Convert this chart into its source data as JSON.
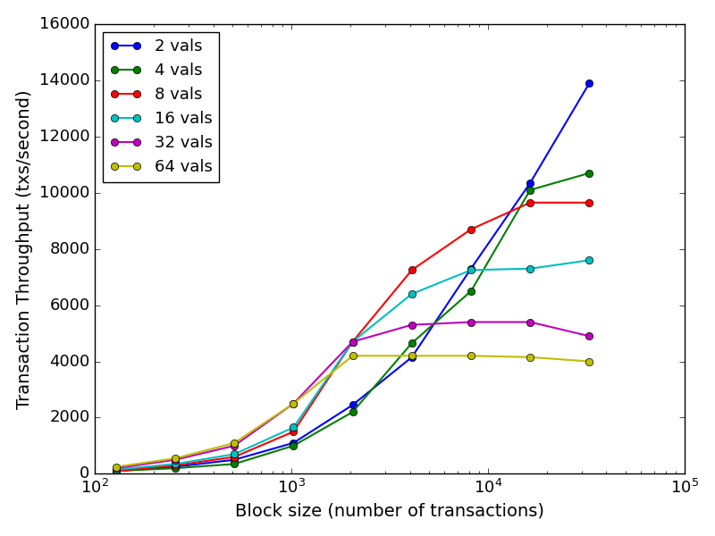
{
  "title": "",
  "xlabel": "Block size (number of transactions)",
  "ylabel": "Transaction Throughput (txs/second)",
  "xlim": [
    100,
    100000
  ],
  "ylim": [
    0,
    16000
  ],
  "yticks": [
    0,
    2000,
    4000,
    6000,
    8000,
    10000,
    12000,
    14000,
    16000
  ],
  "series": [
    {
      "label": "2 vals",
      "color": "#0000ff",
      "x": [
        128,
        256,
        512,
        1024,
        2048,
        4096,
        8192,
        16384,
        32768
      ],
      "y": [
        100,
        250,
        500,
        1100,
        2450,
        4150,
        7300,
        10350,
        13900
      ]
    },
    {
      "label": "4 vals",
      "color": "#007f00",
      "x": [
        128,
        256,
        512,
        1024,
        2048,
        4096,
        8192,
        16384,
        32768
      ],
      "y": [
        100,
        200,
        350,
        1000,
        2200,
        4650,
        6500,
        10100,
        10700
      ]
    },
    {
      "label": "8 vals",
      "color": "#ff0000",
      "x": [
        128,
        256,
        512,
        1024,
        2048,
        4096,
        8192,
        16384,
        32768
      ],
      "y": [
        100,
        300,
        600,
        1500,
        4700,
        7250,
        8700,
        9650,
        9650
      ]
    },
    {
      "label": "16 vals",
      "color": "#00bfbf",
      "x": [
        128,
        256,
        512,
        1024,
        2048,
        4096,
        8192,
        16384,
        32768
      ],
      "y": [
        150,
        350,
        700,
        1650,
        4700,
        6400,
        7250,
        7300,
        7600
      ]
    },
    {
      "label": "32 vals",
      "color": "#bf00bf",
      "x": [
        128,
        256,
        512,
        1024,
        2048,
        4096,
        8192,
        16384,
        32768
      ],
      "y": [
        200,
        500,
        1000,
        2500,
        4700,
        5300,
        5400,
        5400,
        4900
      ]
    },
    {
      "label": "64 vals",
      "color": "#bfbf00",
      "x": [
        128,
        256,
        512,
        1024,
        2048,
        4096,
        8192,
        16384,
        32768
      ],
      "y": [
        250,
        550,
        1100,
        2500,
        4200,
        4200,
        4200,
        4150,
        4000
      ]
    }
  ],
  "legend_loc": "upper left",
  "marker": "o",
  "markersize": 6,
  "linewidth": 1.5,
  "label_fontsize": 14,
  "tick_fontsize": 13,
  "legend_fontsize": 13,
  "figure_facecolor": "#f0f0f0",
  "axes_facecolor": "#e5e5e5"
}
